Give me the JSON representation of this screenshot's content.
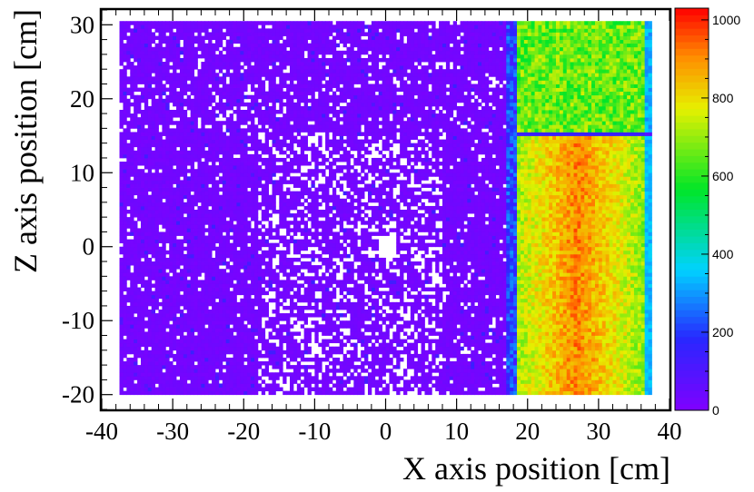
{
  "chart_data": {
    "type": "heatmap",
    "title": "",
    "xlabel": "X axis position [cm]",
    "ylabel": "Z axis position [cm]",
    "xlim": [
      -40,
      40
    ],
    "ylim": [
      -22,
      32
    ],
    "x_ticks": [
      -40,
      -30,
      -20,
      -10,
      0,
      10,
      20,
      30,
      40
    ],
    "y_ticks": [
      -20,
      -10,
      0,
      10,
      20,
      30
    ],
    "x_tick_labels": [
      "-40",
      "-30",
      "-20",
      "-10",
      "0",
      "10",
      "20",
      "30",
      "40"
    ],
    "y_tick_labels": [
      "-20",
      "-10",
      "0",
      "10",
      "20",
      "30"
    ],
    "data_extent_x": [
      -37.5,
      37.5
    ],
    "data_extent_z": [
      -20,
      30.5
    ],
    "colorbar": {
      "min": 0,
      "max": 1030,
      "ticks": [
        0,
        200,
        400,
        600,
        800,
        1000
      ],
      "tick_labels": [
        "0",
        "200",
        "400",
        "600",
        "800",
        "1000"
      ],
      "palette": "rainbow (violet → blue → cyan → green → yellow → red)"
    },
    "regions": [
      {
        "label": "low-count region with empty bins",
        "x_range": [
          -37.5,
          17
        ],
        "z_range": [
          -20,
          30.5
        ],
        "typical_counts": 25
      },
      {
        "label": "high-count band",
        "x_range": [
          18.5,
          37.5
        ],
        "z_range": [
          15.5,
          30.5
        ],
        "typical_counts": 650
      },
      {
        "label": "high-count band",
        "x_range": [
          18.5,
          37.5
        ],
        "z_range": [
          -20,
          15
        ],
        "typical_counts": 800
      },
      {
        "label": "low-count strip",
        "x_range": [
          18.5,
          37.5
        ],
        "z_range": [
          15,
          15.5
        ],
        "typical_counts": 150
      }
    ],
    "peak_value": 1020
  }
}
